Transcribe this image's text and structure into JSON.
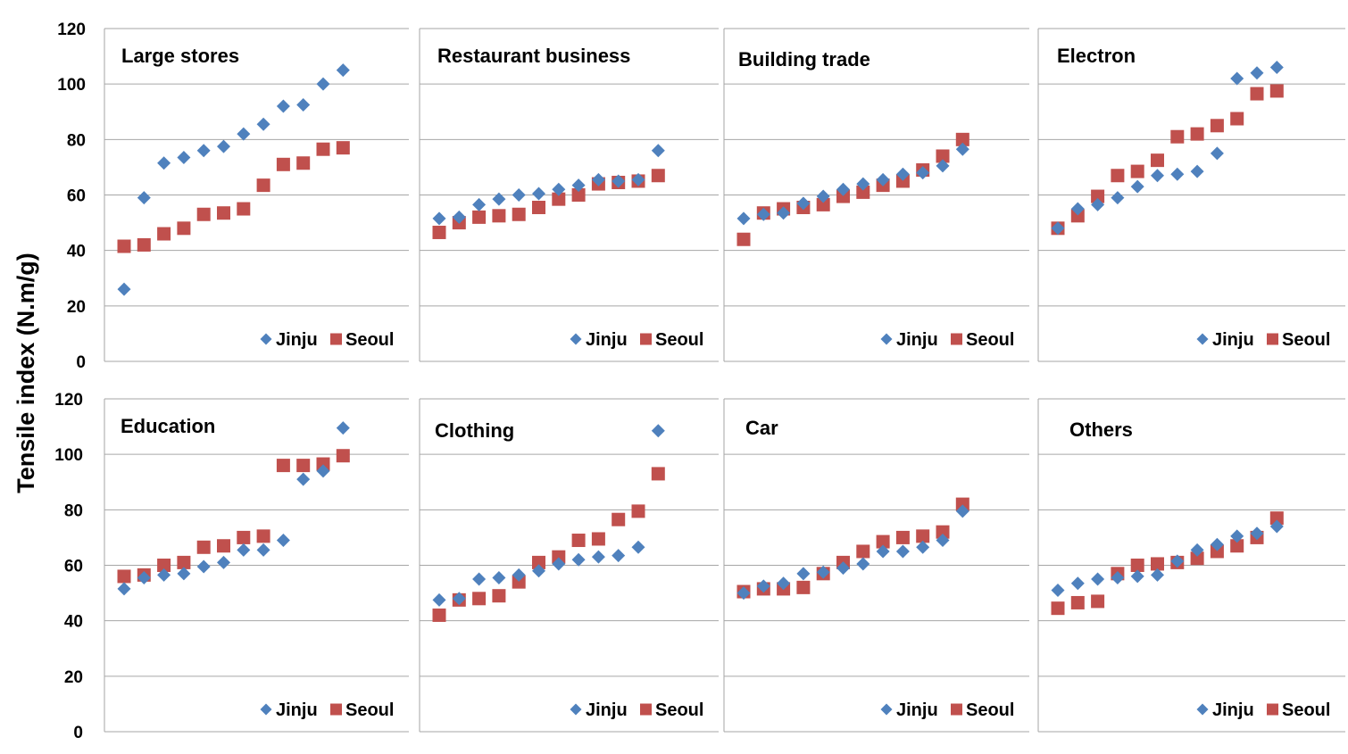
{
  "chart_data": {
    "type": "scatter",
    "ylabel": "Tensile index (N.m/g)",
    "ylim": [
      0,
      120
    ],
    "yticks": [
      "0",
      "20",
      "40",
      "60",
      "80",
      "100",
      "120"
    ],
    "grid": true,
    "legend_placement": "bottom-right",
    "series_names": [
      "Jinju",
      "Seoul"
    ],
    "colors": {
      "Jinju": "#4F81BD",
      "Seoul": "#C0504D",
      "grid": "#A6A6A6"
    },
    "markers": {
      "Jinju": "diamond",
      "Seoul": "square"
    },
    "panels": [
      {
        "title": "Large stores",
        "series": [
          {
            "name": "Jinju",
            "values": [
              26,
              59,
              71.5,
              73.5,
              76,
              77.5,
              82,
              85.5,
              92,
              92.5,
              100,
              105
            ]
          },
          {
            "name": "Seoul",
            "values": [
              41.5,
              42,
              46,
              48,
              53,
              53.5,
              55,
              63.5,
              71,
              71.5,
              76.5,
              77
            ]
          }
        ]
      },
      {
        "title": "Restaurant business",
        "series": [
          {
            "name": "Jinju",
            "values": [
              51.5,
              52,
              56.5,
              58.5,
              60,
              60.5,
              62,
              63.5,
              65.5,
              65,
              65.5,
              76
            ]
          },
          {
            "name": "Seoul",
            "values": [
              46.5,
              50,
              52,
              52.5,
              53,
              55.5,
              58.5,
              60,
              64,
              64.5,
              65,
              67
            ]
          }
        ]
      },
      {
        "title": "Building trade",
        "series": [
          {
            "name": "Jinju",
            "values": [
              51.5,
              53,
              53.5,
              57,
              59.5,
              62,
              64,
              65.5,
              67.5,
              68,
              70.5,
              76.5
            ]
          },
          {
            "name": "Seoul",
            "values": [
              44,
              53.5,
              55,
              55.5,
              56.5,
              59.5,
              61,
              63.5,
              65,
              69,
              74,
              80
            ]
          }
        ]
      },
      {
        "title": "Electron",
        "series": [
          {
            "name": "Jinju",
            "values": [
              48,
              55,
              56.5,
              59,
              63,
              67,
              67.5,
              68.5,
              75,
              102,
              104,
              106
            ]
          },
          {
            "name": "Seoul",
            "values": [
              48,
              52.5,
              59.5,
              67,
              68.5,
              72.5,
              81,
              82,
              85,
              87.5,
              96.5,
              97.5
            ]
          }
        ]
      },
      {
        "title": "Education",
        "series": [
          {
            "name": "Jinju",
            "values": [
              51.5,
              55.5,
              56.5,
              57,
              59.5,
              61,
              65.5,
              65.5,
              69,
              91,
              94,
              109.5
            ]
          },
          {
            "name": "Seoul",
            "values": [
              56,
              56.5,
              60,
              61,
              66.5,
              67,
              70,
              70.5,
              96,
              96,
              96.5,
              99.5
            ]
          }
        ]
      },
      {
        "title": "Clothing",
        "series": [
          {
            "name": "Jinju",
            "values": [
              47.5,
              48,
              55,
              55.5,
              56.5,
              58,
              60.5,
              62,
              63,
              63.5,
              66.5,
              108.5
            ]
          },
          {
            "name": "Seoul",
            "values": [
              42,
              47.5,
              48,
              49,
              54,
              61,
              63,
              69,
              69.5,
              76.5,
              79.5,
              93
            ]
          }
        ]
      },
      {
        "title": "Car",
        "series": [
          {
            "name": "Jinju",
            "values": [
              50,
              52.5,
              53.5,
              57,
              57.5,
              59,
              60.5,
              65,
              65,
              66.5,
              69,
              79.5
            ]
          },
          {
            "name": "Seoul",
            "values": [
              50.5,
              51.5,
              51.5,
              52,
              57,
              61,
              65,
              68.5,
              70,
              70.5,
              72,
              82
            ]
          }
        ]
      },
      {
        "title": "Others",
        "series": [
          {
            "name": "Jinju",
            "values": [
              51,
              53.5,
              55,
              55.5,
              56,
              56.5,
              61.5,
              65.5,
              67.5,
              70.5,
              71.5,
              74
            ]
          },
          {
            "name": "Seoul",
            "values": [
              44.5,
              46.5,
              47,
              57,
              60,
              60.5,
              61,
              62.5,
              65,
              67,
              70,
              77
            ]
          }
        ]
      }
    ]
  }
}
